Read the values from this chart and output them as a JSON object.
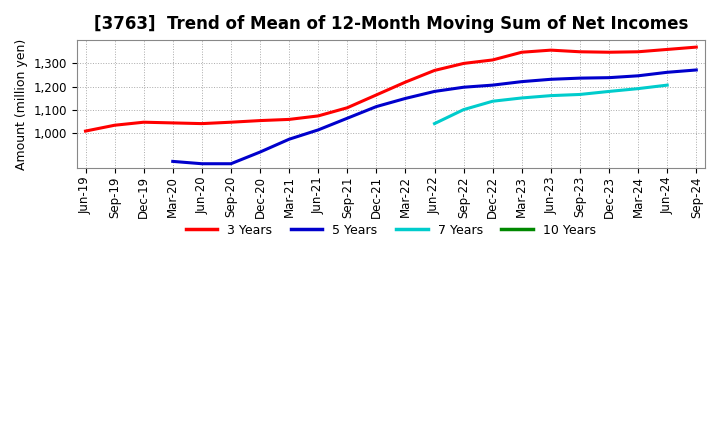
{
  "title": "[3763]  Trend of Mean of 12-Month Moving Sum of Net Incomes",
  "ylabel": "Amount (million yen)",
  "ylim": [
    850,
    1400
  ],
  "yticks": [
    1000,
    1100,
    1200,
    1300
  ],
  "background_color": "#ffffff",
  "grid_color": "#aaaaaa",
  "x_labels": [
    "Jun-19",
    "Sep-19",
    "Dec-19",
    "Mar-20",
    "Jun-20",
    "Sep-20",
    "Dec-20",
    "Mar-21",
    "Jun-21",
    "Sep-21",
    "Dec-21",
    "Mar-22",
    "Jun-22",
    "Sep-22",
    "Dec-22",
    "Mar-23",
    "Jun-23",
    "Sep-23",
    "Dec-23",
    "Mar-24",
    "Jun-24",
    "Sep-24"
  ],
  "series": {
    "3yr": {
      "color": "#ff0000",
      "label": "3 Years",
      "values": [
        1010,
        1035,
        1048,
        1045,
        1042,
        1048,
        1055,
        1060,
        1075,
        1110,
        1165,
        1220,
        1270,
        1300,
        1315,
        1348,
        1357,
        1350,
        1348,
        1350,
        1360,
        1370
      ]
    },
    "5yr": {
      "color": "#0000cc",
      "label": "5 Years",
      "values": [
        null,
        null,
        null,
        880,
        870,
        870,
        920,
        975,
        1015,
        1065,
        1115,
        1150,
        1180,
        1198,
        1207,
        1222,
        1232,
        1237,
        1239,
        1247,
        1262,
        1272
      ]
    },
    "7yr": {
      "color": "#00cccc",
      "label": "7 Years",
      "values": [
        null,
        null,
        null,
        null,
        null,
        null,
        null,
        null,
        null,
        null,
        null,
        null,
        1042,
        1102,
        1138,
        1152,
        1162,
        1167,
        1180,
        1192,
        1207,
        null
      ]
    },
    "10yr": {
      "color": "#008800",
      "label": "10 Years",
      "values": [
        null,
        null,
        null,
        null,
        null,
        null,
        null,
        null,
        null,
        null,
        null,
        null,
        null,
        null,
        null,
        null,
        null,
        null,
        null,
        null,
        null,
        null
      ]
    }
  },
  "legend_labels": [
    "3 Years",
    "5 Years",
    "7 Years",
    "10 Years"
  ],
  "legend_colors": [
    "#ff0000",
    "#0000cc",
    "#00cccc",
    "#008800"
  ],
  "title_fontsize": 12,
  "axis_label_fontsize": 9,
  "tick_fontsize": 8.5
}
